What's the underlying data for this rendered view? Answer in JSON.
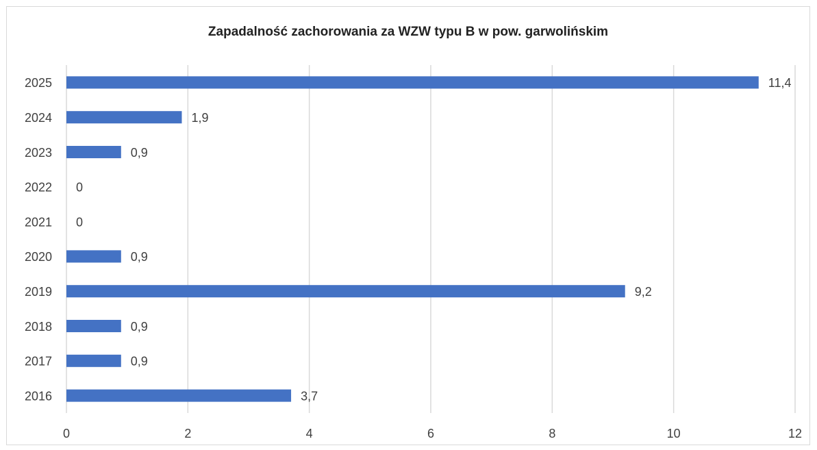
{
  "chart_data": {
    "type": "bar",
    "orientation": "horizontal",
    "title": "Zapadalność zachorowania za WZW typu B w pow. garwolińskim",
    "categories": [
      "2025",
      "2024",
      "2023",
      "2022",
      "2021",
      "2020",
      "2019",
      "2018",
      "2017",
      "2016"
    ],
    "values": [
      11.4,
      1.9,
      0.9,
      0,
      0,
      0.9,
      9.2,
      0.9,
      0.9,
      3.7
    ],
    "value_labels": [
      "11,4",
      "1,9",
      "0,9",
      "0",
      "0",
      "0,9",
      "9,2",
      "0,9",
      "0,9",
      "3,7"
    ],
    "color": "#4472c4",
    "xlim": [
      0,
      12
    ],
    "xticks": [
      0,
      2,
      4,
      6,
      8,
      10,
      12
    ],
    "grid": true
  }
}
